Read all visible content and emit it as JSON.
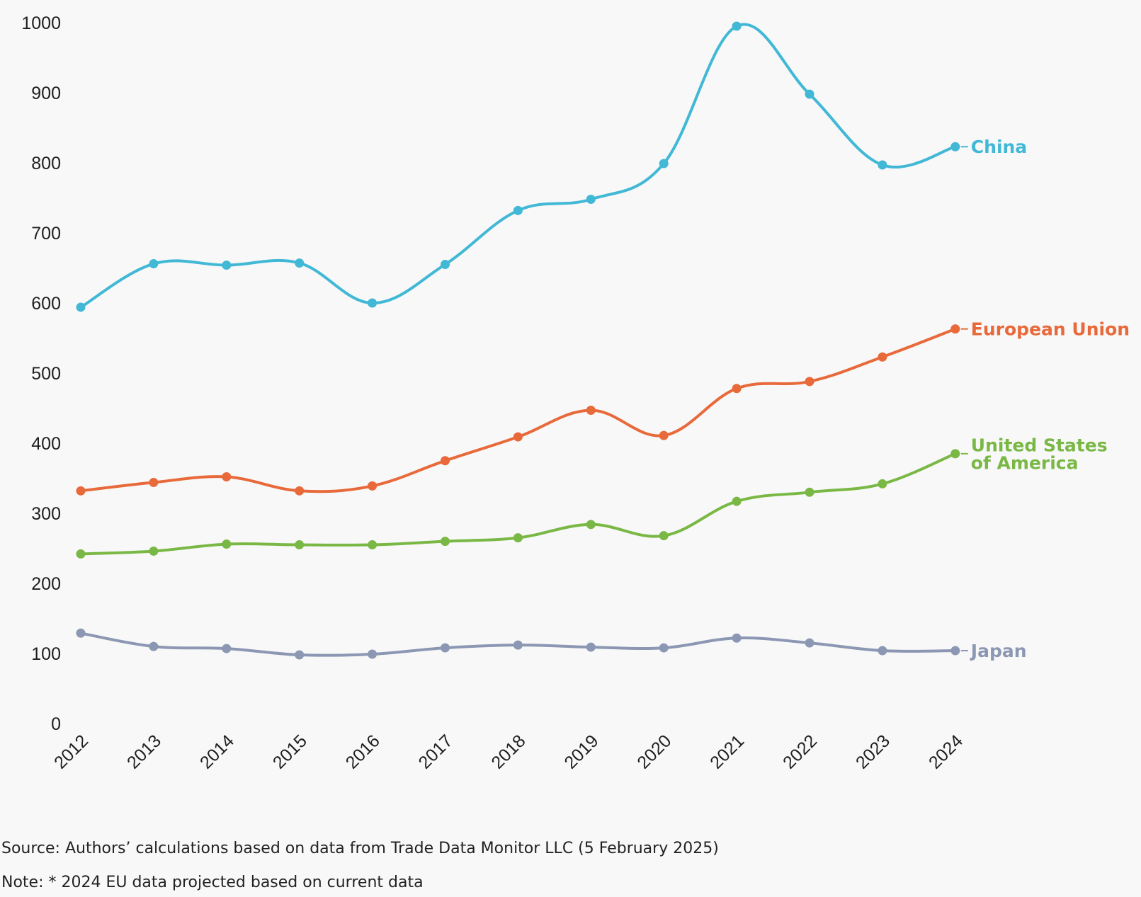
{
  "chart_data": {
    "type": "line",
    "title": "",
    "xlabel": "",
    "ylabel": "",
    "ylim": [
      0,
      1000
    ],
    "y_ticks": [
      "0",
      "100",
      "200",
      "300",
      "400",
      "500",
      "600",
      "700",
      "800",
      "900",
      "1000"
    ],
    "categories": [
      "2012",
      "2013",
      "2014",
      "2015",
      "2016",
      "2017",
      "2018",
      "2019",
      "2020",
      "2021",
      "2022",
      "2023",
      "2024"
    ],
    "grid": false,
    "legend": "series labels at line ends (right)",
    "series": [
      {
        "name": "China",
        "label_lines": [
          "China"
        ],
        "color": "#41b8d5",
        "values": [
          594,
          656,
          654,
          657,
          600,
          655,
          732,
          748,
          799,
          995,
          898,
          797,
          823
        ]
      },
      {
        "name": "European Union",
        "label_lines": [
          "European Union"
        ],
        "color": "#e8693a",
        "values": [
          332,
          344,
          352,
          332,
          339,
          375,
          409,
          447,
          411,
          478,
          488,
          523,
          563
        ]
      },
      {
        "name": "United States of America",
        "label_lines": [
          "United States",
          "of America"
        ],
        "color": "#7ab845",
        "values": [
          242,
          246,
          256,
          255,
          255,
          260,
          265,
          284,
          268,
          317,
          330,
          342,
          385
        ]
      },
      {
        "name": "Japan",
        "label_lines": [
          "Japan"
        ],
        "color": "#8b97b3",
        "values": [
          129,
          110,
          107,
          98,
          99,
          108,
          112,
          109,
          108,
          122,
          115,
          104,
          104
        ]
      }
    ]
  },
  "footnotes": {
    "source": "Source: Authors’ calculations based on data from Trade Data Monitor LLC (5 February 2025)",
    "note": "Note: * 2024 EU data projected based on current data"
  }
}
